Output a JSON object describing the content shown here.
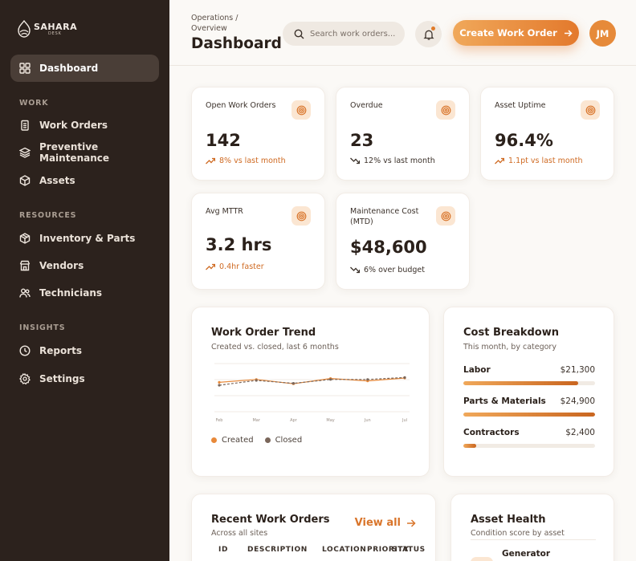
{
  "brand": {
    "name": "SAHARA",
    "sub": "DESK"
  },
  "sidebar": {
    "dashboard": "Dashboard",
    "sections": {
      "work": "WORK",
      "resources": "RESOURCES",
      "insights": "INSIGHTS"
    },
    "items": {
      "work_orders": "Work Orders",
      "preventive": "Preventive Maintenance",
      "assets": "Assets",
      "inventory": "Inventory & Parts",
      "vendors": "Vendors",
      "technicians": "Technicians",
      "reports": "Reports",
      "settings": "Settings"
    }
  },
  "header": {
    "breadcrumb": "Operations / Overview",
    "title": "Dashboard",
    "search_placeholder": "Search work orders...",
    "create_label": "Create Work Order",
    "avatar_initials": "JM"
  },
  "kpis": [
    {
      "label": "Open Work Orders",
      "value": "142",
      "delta": "8% vs last month",
      "trend": "up"
    },
    {
      "label": "Overdue",
      "value": "23",
      "delta": "12% vs last month",
      "trend": "down"
    },
    {
      "label": "Asset Uptime",
      "value": "96.4%",
      "delta": "1.1pt vs last month",
      "trend": "up"
    },
    {
      "label": "Avg MTTR",
      "value": "3.2 hrs",
      "delta": "0.4hr faster",
      "trend": "up"
    },
    {
      "label": "Maintenance Cost (MTD)",
      "value": "$48,600",
      "delta": "6% over budget",
      "trend": "down"
    }
  ],
  "trend": {
    "title": "Work Order Trend",
    "subtitle": "Created vs. closed, last 6 months",
    "legend": {
      "created": "Created",
      "closed": "Closed"
    },
    "colors": {
      "created": "#e8893a",
      "closed": "#7a665a"
    }
  },
  "chart_data": {
    "type": "line",
    "categories": [
      "Feb",
      "Mar",
      "Apr",
      "May",
      "Jun",
      "Jul"
    ],
    "series": [
      {
        "name": "Created",
        "values": [
          61,
          67,
          58,
          69,
          64,
          70
        ]
      },
      {
        "name": "Closed",
        "values": [
          55,
          65,
          59,
          67,
          67,
          71
        ]
      }
    ],
    "ylim": [
      0,
      100
    ],
    "grid": true
  },
  "costs": {
    "title": "Cost Breakdown",
    "subtitle": "This month, by category",
    "items": [
      {
        "name": "Labor",
        "value": "$21,300",
        "fraction": 0.87
      },
      {
        "name": "Parts & Materials",
        "value": "$24,900",
        "fraction": 1.0
      },
      {
        "name": "Contractors",
        "value": "$2,400",
        "fraction": 0.1
      }
    ]
  },
  "recent": {
    "title": "Recent Work Orders",
    "subtitle": "Across all sites",
    "view_all": "View all",
    "columns": [
      "ID",
      "DESCRIPTION",
      "LOCATION",
      "PRIORITY",
      "STATUS"
    ]
  },
  "health": {
    "title": "Asset Health",
    "subtitle": "Condition score by asset",
    "first_asset": "Generator"
  }
}
